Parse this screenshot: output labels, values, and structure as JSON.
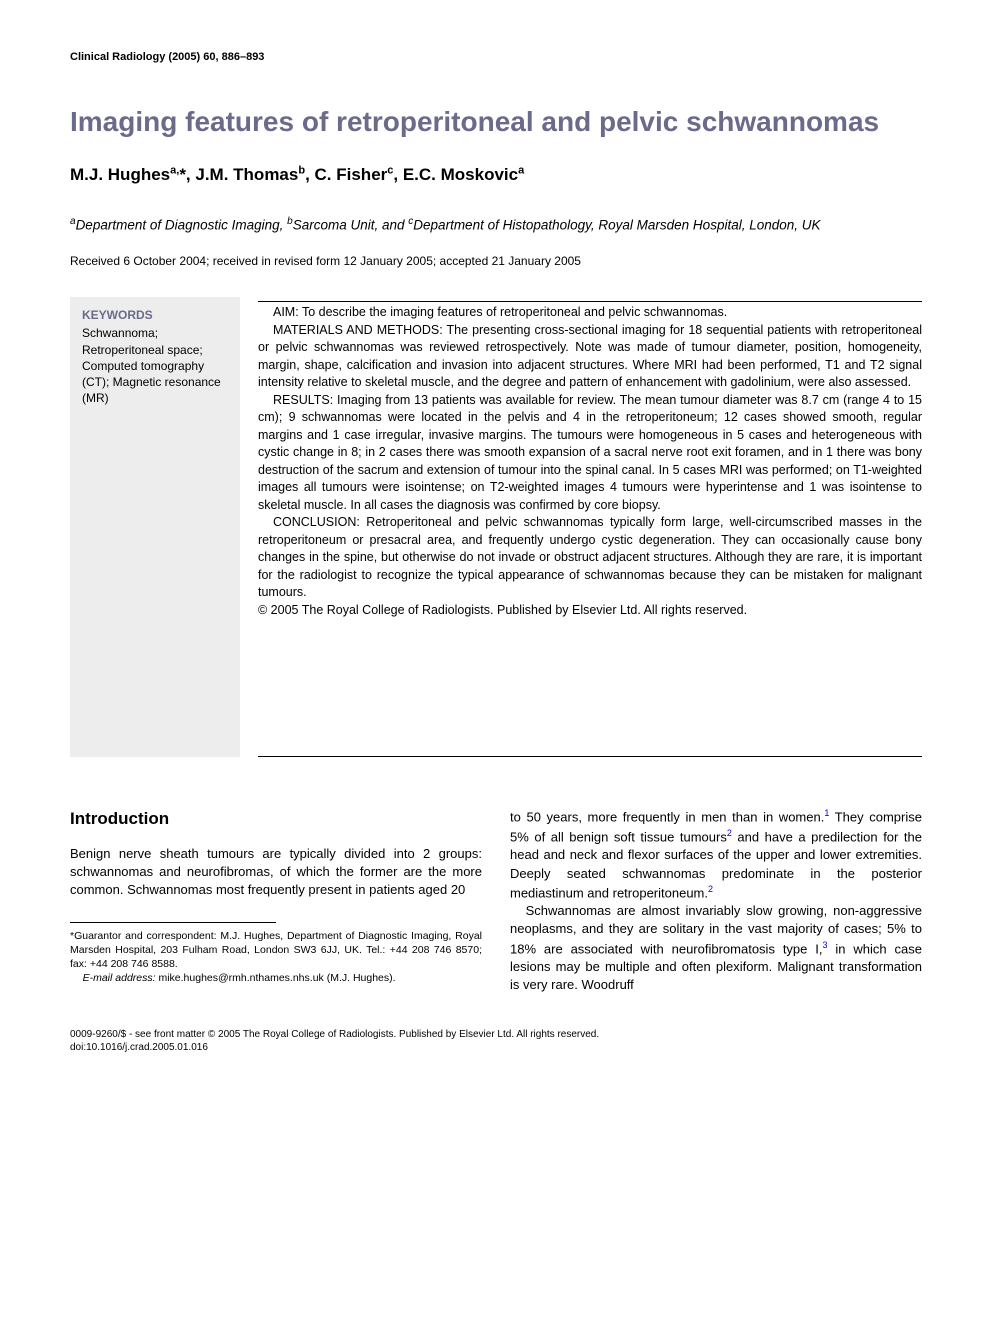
{
  "running_head": "Clinical Radiology (2005) 60, 886–893",
  "title": "Imaging features of retroperitoneal and pelvic schwannomas",
  "authors_html": "M.J. Hughes<sup>a,</sup>*, J.M. Thomas<sup>b</sup>, C. Fisher<sup>c</sup>, E.C. Moskovic<sup>a</sup>",
  "affiliations_html": "<sup>a</sup>Department of Diagnostic Imaging, <sup>b</sup>Sarcoma Unit, and <sup>c</sup>Department of Histopathology, Royal Marsden Hospital, London, UK",
  "dates": "Received 6 October 2004; received in revised form 12 January 2005; accepted 21 January 2005",
  "keywords": {
    "heading": "KEYWORDS",
    "list": "Schwannoma; Retroperitoneal space; Computed tomography (CT); Magnetic resonance (MR)"
  },
  "abstract": {
    "aim": "AIM: To describe the imaging features of retroperitoneal and pelvic schwannomas.",
    "methods": "MATERIALS AND METHODS: The presenting cross-sectional imaging for 18 sequential patients with retroperitoneal or pelvic schwannomas was reviewed retrospectively. Note was made of tumour diameter, position, homogeneity, margin, shape, calcification and invasion into adjacent structures. Where MRI had been performed, T1 and T2 signal intensity relative to skeletal muscle, and the degree and pattern of enhancement with gadolinium, were also assessed.",
    "results": "RESULTS: Imaging from 13 patients was available for review. The mean tumour diameter was 8.7 cm (range 4 to 15 cm); 9 schwannomas were located in the pelvis and 4 in the retroperitoneum; 12 cases showed smooth, regular margins and 1 case irregular, invasive margins. The tumours were homogeneous in 5 cases and heterogeneous with cystic change in 8; in 2 cases there was smooth expansion of a sacral nerve root exit foramen, and in 1 there was bony destruction of the sacrum and extension of tumour into the spinal canal. In 5 cases MRI was performed; on T1-weighted images all tumours were isointense; on T2-weighted images 4 tumours were hyperintense and 1 was isointense to skeletal muscle. In all cases the diagnosis was confirmed by core biopsy.",
    "conclusion": "CONCLUSION: Retroperitoneal and pelvic schwannomas typically form large, well-circumscribed masses in the retroperitoneum or presacral area, and frequently undergo cystic degeneration. They can occasionally cause bony changes in the spine, but otherwise do not invade or obstruct adjacent structures. Although they are rare, it is important for the radiologist to recognize the typical appearance of schwannomas because they can be mistaken for malignant tumours.",
    "copyright": "© 2005 The Royal College of Radiologists. Published by Elsevier Ltd. All rights reserved."
  },
  "intro": {
    "heading": "Introduction",
    "left_para": "Benign nerve sheath tumours are typically divided into 2 groups: schwannomas and neurofibromas, of which the former are the more common. Schwannomas most frequently present in patients aged 20",
    "right_p1_html": "to 50 years, more frequently in men than in women.<span class=\"ref-sup\">1</span> They comprise 5% of all benign soft tissue tumours<span class=\"ref-sup\">2</span> and have a predilection for the head and neck and flexor surfaces of the upper and lower extremities. Deeply seated schwannomas predominate in the posterior mediastinum and retroperitoneum.<span class=\"ref-sup\">2</span>",
    "right_p2_html": "Schwannomas are almost invariably slow growing, non-aggressive neoplasms, and they are solitary in the vast majority of cases; 5% to 18% are associated with neurofibromatosis type I,<span class=\"ref-sup\">3</span> in which case lesions may be multiple and often plexiform. Malignant transformation is very rare. Woodruff"
  },
  "footnote": {
    "line1": "*Guarantor and correspondent: M.J. Hughes, Department of Diagnostic Imaging, Royal Marsden Hospital, 203 Fulham Road, London SW3 6JJ, UK. Tel.: +44 208 746 8570; fax: +44 208 746 8588.",
    "line2_html": "<i>E-mail address:</i> mike.hughes@rmh.nthames.nhs.uk (M.J. Hughes)."
  },
  "page_footer": {
    "line1": "0009-9260/$ - see front matter © 2005 The Royal College of Radiologists. Published by Elsevier Ltd. All rights reserved.",
    "line2": "doi:10.1016/j.crad.2005.01.016"
  },
  "colors": {
    "title": "#6a6a8a",
    "keywords_bg": "#EDEDED",
    "ref_link": "#0000cc",
    "text": "#000000",
    "background": "#ffffff"
  }
}
